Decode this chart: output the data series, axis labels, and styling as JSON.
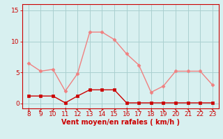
{
  "x": [
    8,
    9,
    10,
    11,
    12,
    13,
    14,
    15,
    16,
    17,
    18,
    19,
    20,
    21,
    22,
    23
  ],
  "rafales": [
    6.5,
    5.2,
    5.5,
    2.0,
    4.8,
    11.5,
    11.5,
    10.3,
    8.0,
    6.2,
    1.8,
    2.8,
    5.2,
    5.2,
    5.2,
    3.0
  ],
  "vent_moyen": [
    1.2,
    1.2,
    1.2,
    0.1,
    1.2,
    2.2,
    2.2,
    2.2,
    0.1,
    0.1,
    0.1,
    0.1,
    0.1,
    0.1,
    0.1,
    0.1
  ],
  "color_rafales": "#f08080",
  "color_vent": "#cc0000",
  "color_bg": "#d8f0f0",
  "color_grid": "#aacfcf",
  "color_axis_line": "#cc0000",
  "color_tick": "#cc0000",
  "xlabel": "Vent moyen/en rafales ( km/h )",
  "ylim": [
    -0.8,
    16
  ],
  "yticks": [
    0,
    5,
    10,
    15
  ],
  "xticks": [
    8,
    9,
    10,
    11,
    12,
    13,
    14,
    15,
    16,
    17,
    18,
    19,
    20,
    21,
    22,
    23
  ],
  "arrows": [
    "↓",
    "↙",
    "↙",
    "↑",
    "↖",
    "↖",
    "↗",
    "↗",
    "↑",
    "↖",
    "↓",
    "↘",
    "↘",
    "↘",
    "↘",
    "↘"
  ]
}
